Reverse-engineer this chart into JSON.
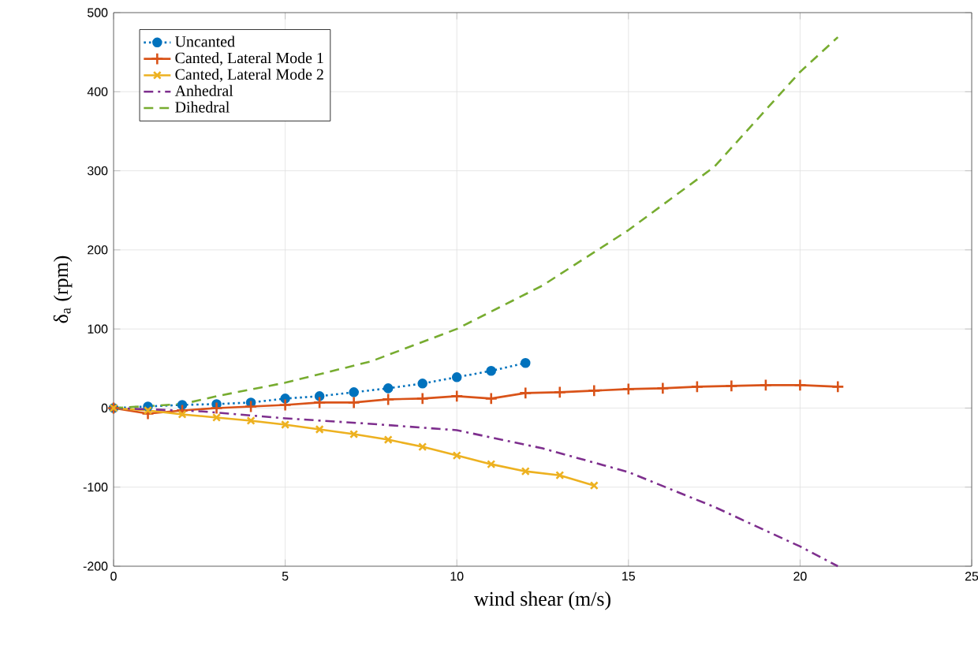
{
  "chart_data": {
    "type": "line",
    "xlabel": "wind shear (m/s)",
    "ylabel": "δ$_{a}$ (rpm)",
    "xlim": [
      0,
      25
    ],
    "xticks": [
      0,
      5,
      10,
      15,
      20,
      25
    ],
    "ylim": [
      -200,
      500
    ],
    "yticks": [
      -200,
      -100,
      0,
      100,
      200,
      300,
      400,
      500
    ],
    "grid": true,
    "legend": "top left",
    "series": [
      {
        "name": "Uncanted",
        "color": "#0072bd",
        "marker": "circle",
        "line_style": "dotted",
        "x": [
          0,
          1,
          2,
          3,
          4,
          5,
          6,
          7,
          8,
          9,
          10,
          11,
          12
        ],
        "values": [
          0,
          2,
          4,
          5,
          7,
          12,
          15,
          20,
          25,
          31,
          39,
          47,
          57
        ]
      },
      {
        "name": "Canted, Lateral Mode 1",
        "color": "#d95319",
        "marker": "plus",
        "line_style": "solid",
        "x": [
          0,
          1,
          2,
          3,
          4,
          5,
          6,
          7,
          8,
          9,
          10,
          11,
          12,
          13,
          14,
          15,
          16,
          17,
          18,
          19,
          20,
          21.1
        ],
        "values": [
          0,
          -7,
          -3,
          0,
          2,
          4,
          7,
          7,
          11,
          12,
          15,
          12,
          19,
          20,
          22,
          24,
          25,
          27,
          28,
          29,
          29,
          27
        ]
      },
      {
        "name": "Canted, Lateral Mode 2",
        "color": "#edb120",
        "marker": "cross",
        "line_style": "solid",
        "x": [
          0,
          1,
          2,
          3,
          4,
          5,
          6,
          7,
          8,
          9,
          10,
          11,
          12,
          13,
          14
        ],
        "values": [
          0,
          -3,
          -8,
          -12,
          -16,
          -21,
          -27,
          -33,
          -40,
          -49,
          -60,
          -71,
          -80,
          -85,
          -98
        ]
      },
      {
        "name": "Anhedral",
        "color": "#7e2f8e",
        "marker": "none",
        "line_style": "dashdot",
        "x": [
          0,
          2.5,
          5,
          7.5,
          10,
          12.5,
          15,
          17.5,
          20,
          21.1
        ],
        "values": [
          0,
          -4,
          -13,
          -20,
          -28,
          -51,
          -81,
          -125,
          -175,
          -200
        ]
      },
      {
        "name": "Dihedral",
        "color": "#77ac30",
        "marker": "none",
        "line_style": "dashed",
        "x": [
          0,
          2,
          3,
          5,
          7.5,
          10,
          12.5,
          15,
          17.5,
          20,
          21.1
        ],
        "values": [
          0,
          5,
          15,
          32,
          59,
          100,
          155,
          225,
          305,
          425,
          469
        ]
      }
    ]
  }
}
